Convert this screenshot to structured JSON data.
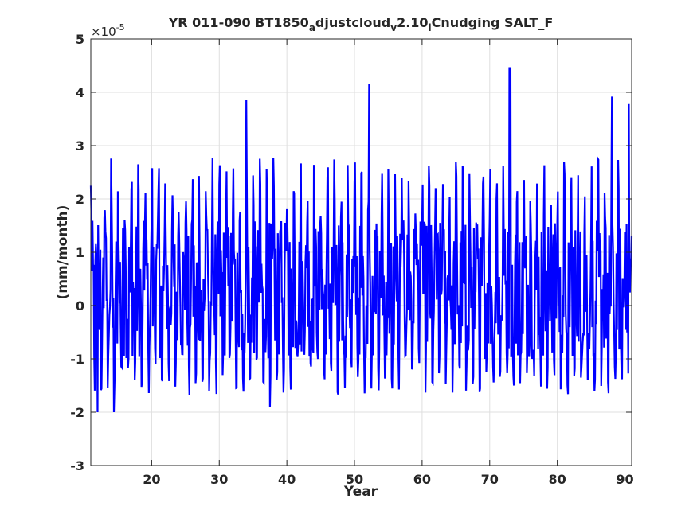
{
  "chart_data": {
    "type": "line",
    "title": {
      "parts": [
        {
          "text": "YR 011-090 BT1850",
          "shift": "none"
        },
        {
          "text": "a",
          "shift": "sub"
        },
        {
          "text": "djustcloud",
          "shift": "none"
        },
        {
          "text": "v",
          "shift": "sub"
        },
        {
          "text": "2.10",
          "shift": "none"
        },
        {
          "text": "l",
          "shift": "sub"
        },
        {
          "text": "Cnudging SALT_F",
          "shift": "none"
        }
      ]
    },
    "xlabel": "Year",
    "ylabel": "(mm/month)",
    "y_exponent": {
      "base": "×10",
      "power": "-5"
    },
    "xlim": [
      11,
      91
    ],
    "ylim": [
      -3,
      5
    ],
    "xticks": [
      20,
      30,
      40,
      50,
      60,
      70,
      80,
      90
    ],
    "yticks": [
      -3,
      -2,
      -1,
      0,
      1,
      2,
      3,
      4,
      5
    ],
    "grid": true,
    "series": [
      {
        "color": "#0000ff",
        "x_start": 11.0,
        "x_step": 0.08333,
        "pattern": "monthly values oscillating between about -1.2 and +2.5, with annual peaks up to about 4.5 and troughs near -2.0",
        "notable_points": [
          {
            "x": 12.0,
            "y": -2.0
          },
          {
            "x": 14.4,
            "y": -2.0
          },
          {
            "x": 34.0,
            "y": 3.85
          },
          {
            "x": 37.5,
            "y": -1.9
          },
          {
            "x": 52.2,
            "y": 4.15
          },
          {
            "x": 72.9,
            "y": 4.47
          },
          {
            "x": 73.1,
            "y": 4.47
          },
          {
            "x": 88.1,
            "y": 3.92
          },
          {
            "x": 90.6,
            "y": 3.78
          }
        ]
      }
    ]
  }
}
